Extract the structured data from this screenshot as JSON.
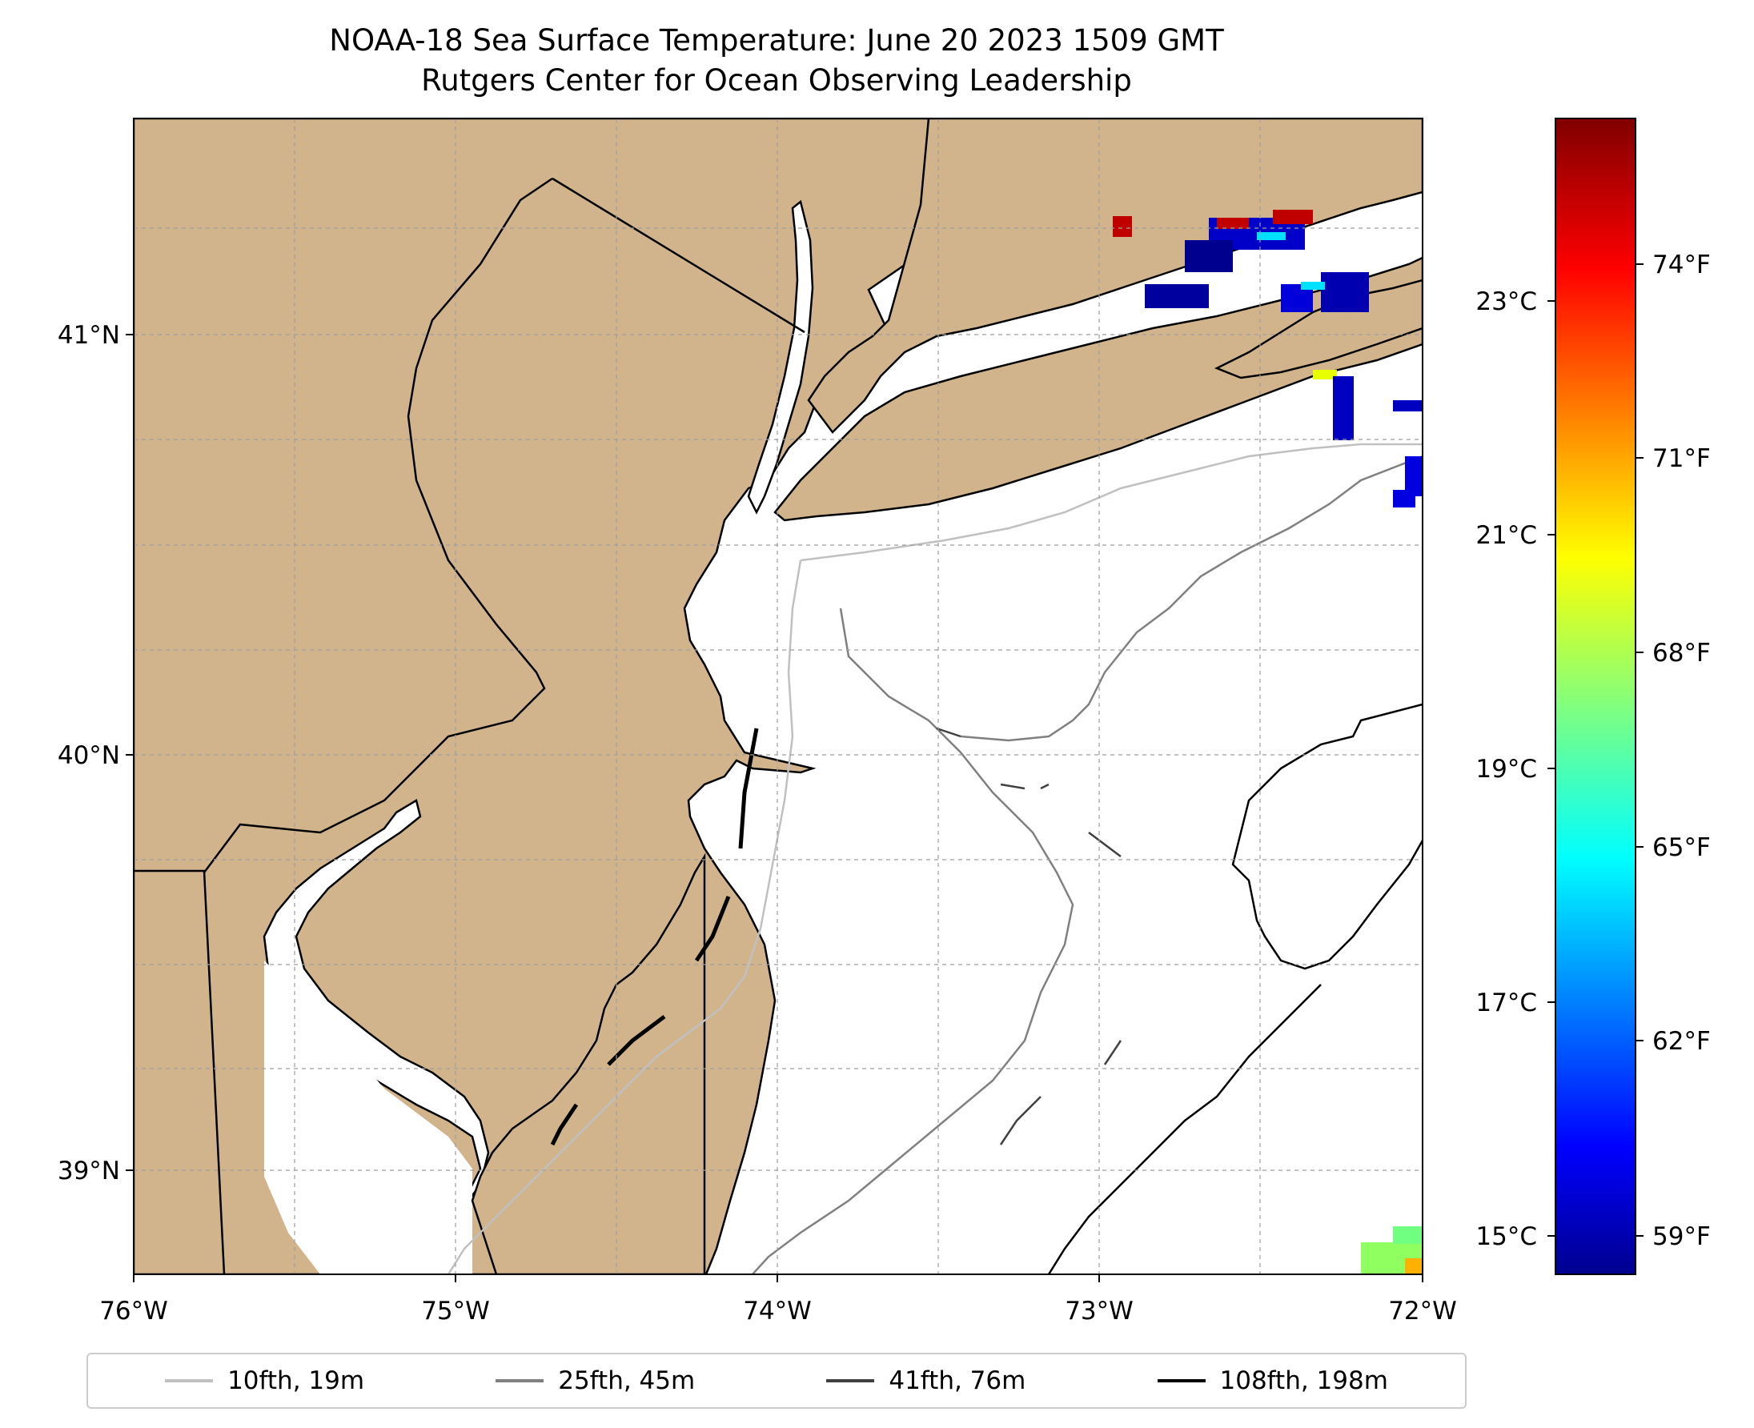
{
  "title": {
    "line1": "NOAA-18 Sea Surface Temperature: June 20 2023 1509 GMT",
    "line2": "Rutgers Center for Ocean Observing Leadership"
  },
  "colors": {
    "land": "#d2b48c",
    "water": "#ffffff",
    "coast": "#000000",
    "gridline": "#9e9e9e"
  },
  "axes": {
    "lon_labels": [
      "76°W",
      "75°W",
      "74°W",
      "73°W",
      "72°W"
    ],
    "lat_labels": [
      "41°N",
      "40°N",
      "39°N"
    ],
    "lon_range": [
      -76,
      -72
    ],
    "lat_range": [
      38.75,
      41.52
    ]
  },
  "colorbar": {
    "colormap": "jet",
    "range_c": [
      14.7,
      24.6
    ],
    "celsius_labels": [
      "23°C",
      "21°C",
      "19°C",
      "17°C",
      "15°C"
    ],
    "fahrenheit_labels": [
      "74°F",
      "71°F",
      "68°F",
      "65°F",
      "62°F",
      "59°F"
    ]
  },
  "legend": [
    {
      "label": "10fth, 19m",
      "color": "#c0c0c0"
    },
    {
      "label": "25fth, 45m",
      "color": "#808080"
    },
    {
      "label": "41fth, 76m",
      "color": "#404040"
    },
    {
      "label": "108fth, 198m",
      "color": "#000000"
    }
  ]
}
